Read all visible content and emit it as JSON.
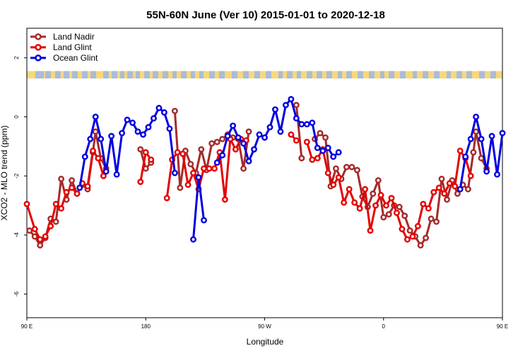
{
  "chart_data": {
    "type": "line",
    "title": "55N-60N June (Ver 10)   2015-01-01 to 2020-12-18",
    "xlabel": "Longitude",
    "ylabel": "XCO2 - MLO trend (ppm)",
    "xlim": [
      90,
      450
    ],
    "ylim": [
      -6.8,
      3.0
    ],
    "x_ticks": [
      {
        "value": 90,
        "label": "90 E"
      },
      {
        "value": 180,
        "label": "180"
      },
      {
        "value": 270,
        "label": "90 W"
      },
      {
        "value": 360,
        "label": "0"
      },
      {
        "value": 450,
        "label": "90 E"
      },
      {
        "value": 540,
        "label": "180"
      }
    ],
    "y_ticks": [
      {
        "value": -6,
        "label": "-6"
      },
      {
        "value": -4,
        "label": "-4"
      },
      {
        "value": -2,
        "label": "-2"
      },
      {
        "value": 0,
        "label": "0"
      },
      {
        "value": 2,
        "label": "2"
      }
    ],
    "legend_position": "top-left",
    "land_band": {
      "y_range": [
        1.3,
        1.55
      ],
      "land_color": "#FAD77A",
      "ocean_color": "#A9BCD8"
    },
    "series": [
      {
        "name": "Land Nadir",
        "color": "#A52A2A",
        "points": [
          [
            -3.85,
            1
          ],
          [
            -4.05,
            3
          ],
          [
            -4.35,
            5
          ],
          [
            -4.1,
            7
          ],
          [
            -3.45,
            9
          ],
          [
            -3.55,
            11
          ],
          [
            -2.1,
            13
          ],
          [
            -2.8,
            15
          ],
          [
            -2.15,
            17
          ],
          [
            -2.6,
            19
          ],
          [
            -2.3,
            21
          ],
          [
            -2.45,
            23
          ],
          [
            -1.2,
            25
          ],
          [
            -0.5,
            26
          ],
          [
            -1.4,
            28
          ],
          [
            -1.75,
            30
          ],
          [
            null,
            31
          ],
          [
            -1.1,
            43
          ],
          [
            -1.75,
            45
          ],
          [
            -1.55,
            47
          ],
          [
            null,
            48
          ],
          [
            0.2,
            56
          ],
          [
            -2.4,
            58
          ],
          [
            -1.15,
            60
          ],
          [
            -1.6,
            62
          ],
          [
            -1.9,
            64
          ],
          [
            -1.1,
            66
          ],
          [
            -1.8,
            68
          ],
          [
            -0.9,
            70
          ],
          [
            -0.85,
            72
          ],
          [
            -0.75,
            74
          ],
          [
            -0.6,
            76
          ],
          [
            -0.7,
            78
          ],
          [
            -0.75,
            80
          ],
          [
            -1.75,
            82
          ],
          [
            -0.5,
            84
          ],
          [
            null,
            85
          ],
          [
            0.4,
            102
          ],
          [
            -1.4,
            104
          ],
          [
            null,
            105
          ],
          [
            -0.75,
            109
          ],
          [
            -0.55,
            111
          ],
          [
            -0.7,
            113
          ],
          [
            -2.35,
            115
          ],
          [
            -1.75,
            117
          ],
          [
            -2.1,
            119
          ],
          [
            -1.7,
            121
          ],
          [
            -1.7,
            123
          ],
          [
            -1.8,
            125
          ],
          [
            -2.7,
            127
          ],
          [
            -3.05,
            129
          ],
          [
            -2.6,
            131
          ],
          [
            -2.15,
            133
          ],
          [
            -3.4,
            135
          ],
          [
            -3.3,
            137
          ],
          [
            -3.0,
            139
          ],
          [
            -3.05,
            141
          ],
          [
            -3.35,
            143
          ],
          [
            -3.85,
            145
          ],
          [
            -4.05,
            147
          ],
          [
            -4.35,
            149
          ],
          [
            -4.1,
            151
          ],
          [
            -3.45,
            153
          ],
          [
            -3.55,
            155
          ],
          [
            -2.1,
            157
          ],
          [
            -2.8,
            159
          ],
          [
            -2.15,
            161
          ],
          [
            -2.6,
            163
          ],
          [
            -2.3,
            165
          ],
          [
            -2.45,
            167
          ],
          [
            -1.2,
            169
          ],
          [
            -0.5,
            170
          ],
          [
            -1.4,
            172
          ],
          [
            -1.75,
            174
          ]
        ]
      },
      {
        "name": "Land Glint",
        "color": "#E50000",
        "points": [
          [
            -2.95,
            0
          ],
          [
            -3.8,
            3
          ],
          [
            -4.15,
            5
          ],
          [
            -4.05,
            7
          ],
          [
            -3.7,
            9
          ],
          [
            -2.95,
            11
          ],
          [
            -3.1,
            13
          ],
          [
            -2.55,
            15
          ],
          [
            -2.4,
            17
          ],
          [
            -2.6,
            19
          ],
          [
            -2.25,
            21
          ],
          [
            -2.35,
            23
          ],
          [
            -1.15,
            25
          ],
          [
            -1.4,
            27
          ],
          [
            -2.0,
            29
          ],
          [
            null,
            30
          ],
          [
            -2.2,
            43
          ],
          [
            -1.2,
            45
          ],
          [
            -1.45,
            47
          ],
          [
            null,
            48
          ],
          [
            -2.75,
            53
          ],
          [
            -1.45,
            55
          ],
          [
            -1.2,
            57
          ],
          [
            -1.25,
            59
          ],
          [
            -2.3,
            61
          ],
          [
            -1.9,
            63
          ],
          [
            -2.45,
            65
          ],
          [
            -1.75,
            67
          ],
          [
            -1.75,
            69
          ],
          [
            -1.75,
            71
          ],
          [
            -1.2,
            73
          ],
          [
            -2.8,
            75
          ],
          [
            -0.75,
            77
          ],
          [
            -1.1,
            79
          ],
          [
            -0.75,
            81
          ],
          [
            -0.8,
            83
          ],
          [
            null,
            84
          ],
          [
            -0.6,
            100
          ],
          [
            -0.8,
            102
          ],
          [
            null,
            103
          ],
          [
            -0.85,
            106
          ],
          [
            -1.45,
            108
          ],
          [
            -1.4,
            110
          ],
          [
            -1.1,
            112
          ],
          [
            -1.9,
            114
          ],
          [
            -2.3,
            116
          ],
          [
            -2.05,
            118
          ],
          [
            -2.9,
            120
          ],
          [
            -2.45,
            122
          ],
          [
            -2.9,
            124
          ],
          [
            -3.1,
            126
          ],
          [
            -2.45,
            128
          ],
          [
            -3.85,
            130
          ],
          [
            -3.0,
            132
          ],
          [
            -2.65,
            134
          ],
          [
            -3.0,
            136
          ],
          [
            -2.75,
            138
          ],
          [
            -3.25,
            140
          ],
          [
            -3.8,
            142
          ],
          [
            -4.15,
            144
          ],
          [
            -4.05,
            146
          ],
          [
            -3.7,
            148
          ],
          [
            -2.95,
            150
          ],
          [
            -3.1,
            152
          ],
          [
            -2.55,
            154
          ],
          [
            -2.4,
            156
          ],
          [
            -2.6,
            158
          ],
          [
            -2.25,
            160
          ],
          [
            -2.35,
            162
          ],
          [
            -1.15,
            164
          ],
          [
            -1.4,
            166
          ],
          [
            -2.0,
            168
          ]
        ]
      },
      {
        "name": "Ocean Glint",
        "color": "#0000E0",
        "points": [
          [
            -2.4,
            20
          ],
          [
            -1.35,
            22
          ],
          [
            -0.75,
            24
          ],
          [
            0.0,
            26
          ],
          [
            -0.75,
            28
          ],
          [
            -1.85,
            30
          ],
          [
            -0.65,
            32
          ],
          [
            -1.95,
            34
          ],
          [
            -0.55,
            36
          ],
          [
            -0.1,
            38
          ],
          [
            -0.2,
            40
          ],
          [
            -0.5,
            42
          ],
          [
            -0.6,
            44
          ],
          [
            -0.35,
            46
          ],
          [
            -0.05,
            48
          ],
          [
            0.3,
            50
          ],
          [
            0.15,
            52
          ],
          [
            -0.4,
            54
          ],
          [
            -1.9,
            56
          ],
          [
            null,
            57
          ],
          [
            -4.15,
            63
          ],
          [
            -2.05,
            65
          ],
          [
            -3.5,
            67
          ],
          [
            null,
            68
          ],
          [
            -1.55,
            72
          ],
          [
            -1.3,
            74
          ],
          [
            -0.65,
            76
          ],
          [
            -0.3,
            78
          ],
          [
            -0.7,
            80
          ],
          [
            -0.9,
            82
          ],
          [
            -1.5,
            84
          ],
          [
            -1.1,
            86
          ],
          [
            -0.6,
            88
          ],
          [
            -0.7,
            90
          ],
          [
            -0.35,
            92
          ],
          [
            0.25,
            94
          ],
          [
            -0.5,
            96
          ],
          [
            0.4,
            98
          ],
          [
            0.6,
            100
          ],
          [
            -0.05,
            102
          ],
          [
            -0.25,
            104
          ],
          [
            -0.25,
            106
          ],
          [
            -0.2,
            108
          ],
          [
            -1.05,
            110
          ],
          [
            -1.15,
            112
          ],
          [
            -1.05,
            114
          ],
          [
            -1.35,
            116
          ],
          [
            -1.2,
            118
          ],
          [
            null,
            119
          ],
          [
            -2.45,
            164
          ],
          [
            -1.35,
            166
          ],
          [
            -0.75,
            168
          ],
          [
            0.0,
            170
          ],
          [
            -0.75,
            172
          ],
          [
            -1.85,
            174
          ],
          [
            -0.65,
            176
          ],
          [
            -1.95,
            178
          ],
          [
            -0.55,
            180
          ]
        ]
      }
    ]
  }
}
